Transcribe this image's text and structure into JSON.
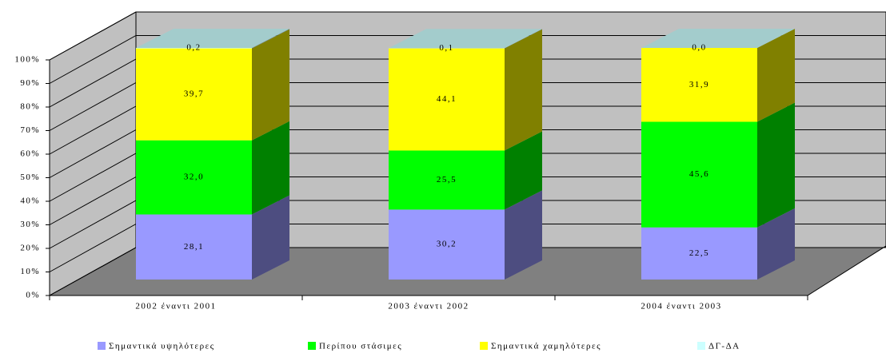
{
  "chart_data": {
    "type": "bar",
    "stacked": true,
    "categories": [
      "2002 έναντι 2001",
      "2003 έναντι 2002",
      "2004 έναντι 2003"
    ],
    "series": [
      {
        "name": "Σημαντικά υψηλότερες",
        "color": "#9999ff",
        "values": [
          28.1,
          30.2,
          22.5
        ],
        "value_labels": [
          "28,1",
          "30,2",
          "22,5"
        ]
      },
      {
        "name": "Περίπου στάσιμες",
        "color": "#00ff00",
        "values": [
          32.0,
          25.5,
          45.6
        ],
        "value_labels": [
          "32,0",
          "25,5",
          "45,6"
        ]
      },
      {
        "name": "Σημαντικά χαμηλότερες",
        "color": "#ffff00",
        "values": [
          39.7,
          44.1,
          31.9
        ],
        "value_labels": [
          "39,7",
          "44,1",
          "31,9"
        ]
      },
      {
        "name": "ΔΓ-ΔΑ",
        "color": "#ccffff",
        "values": [
          0.2,
          0.1,
          0.0
        ],
        "value_labels": [
          "0,2",
          "0,1",
          "0,0"
        ]
      }
    ],
    "ylim": [
      0,
      100
    ],
    "yticks": [
      {
        "value": 0,
        "label": "0%"
      },
      {
        "value": 10,
        "label": "10%"
      },
      {
        "value": 20,
        "label": "20%"
      },
      {
        "value": 30,
        "label": "30%"
      },
      {
        "value": 40,
        "label": "40%"
      },
      {
        "value": 50,
        "label": "50%"
      },
      {
        "value": 60,
        "label": "60%"
      },
      {
        "value": 70,
        "label": "70%"
      },
      {
        "value": 80,
        "label": "80%"
      },
      {
        "value": 90,
        "label": "90%"
      },
      {
        "value": 100,
        "label": "100%"
      }
    ],
    "grid": true,
    "legend": "bottom"
  }
}
